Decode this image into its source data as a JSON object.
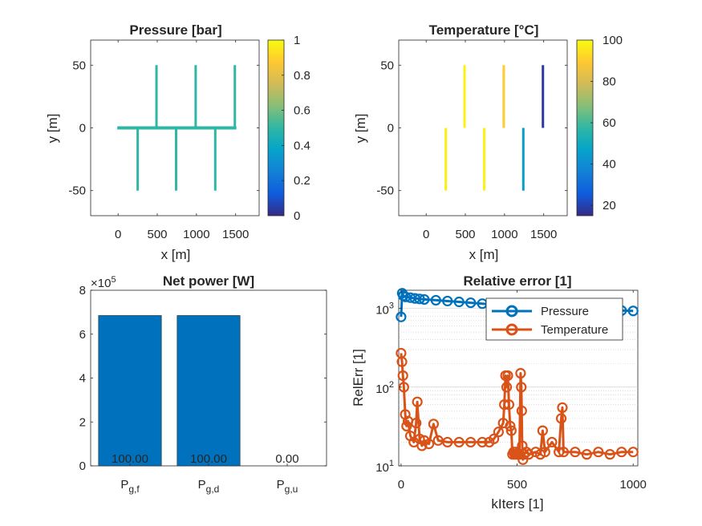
{
  "chart_data": [
    {
      "type": "heatmap",
      "title": "Pressure [bar]",
      "xlabel": "x [m]",
      "ylabel": "y [m]",
      "xlim": [
        -350,
        1800
      ],
      "ylim": [
        -70,
        70
      ],
      "xticks": [
        "0",
        "500",
        "1000",
        "1500"
      ],
      "yticks": [
        "-50",
        "0",
        "50"
      ],
      "colorbar": {
        "min": 0,
        "max": 1,
        "ticks": [
          "0",
          "0.2",
          "0.4",
          "0.6",
          "0.8",
          "1"
        ],
        "colormap": "parula"
      },
      "network": {
        "main": {
          "x": [
            -10,
            1510
          ],
          "y": 0,
          "value": 0.48,
          "inlet_value": 0.15
        },
        "branches": [
          {
            "x": 250,
            "y": [
              0,
              -50
            ],
            "value": 0.5
          },
          {
            "x": 490,
            "y": [
              0,
              50
            ],
            "value": 0.5
          },
          {
            "x": 740,
            "y": [
              0,
              -50
            ],
            "value": 0.5
          },
          {
            "x": 990,
            "y": [
              0,
              50
            ],
            "value": 0.5
          },
          {
            "x": 1240,
            "y": [
              0,
              -50
            ],
            "value": 0.5
          },
          {
            "x": 1490,
            "y": [
              0,
              50
            ],
            "value": 0.5
          }
        ]
      }
    },
    {
      "type": "heatmap",
      "title": "Temperature [°C]",
      "xlabel": "x [m]",
      "ylabel": "y [m]",
      "xlim": [
        -350,
        1800
      ],
      "ylim": [
        -70,
        70
      ],
      "xticks": [
        "0",
        "500",
        "1000",
        "1500"
      ],
      "yticks": [
        "-50",
        "0",
        "50"
      ],
      "colorbar": {
        "min": 15,
        "max": 100,
        "ticks": [
          "20",
          "40",
          "60",
          "80",
          "100"
        ],
        "colormap": "parula"
      },
      "network": {
        "main": {
          "x": [
            -10,
            1510
          ],
          "y": 0,
          "value": 97,
          "outlet_value": 18
        },
        "branches": [
          {
            "x": 250,
            "y": [
              0,
              -50
            ],
            "value": 98
          },
          {
            "x": 490,
            "y": [
              0,
              50
            ],
            "value": 98
          },
          {
            "x": 740,
            "y": [
              0,
              -50
            ],
            "value": 98
          },
          {
            "x": 990,
            "y": [
              0,
              50
            ],
            "value": 90
          },
          {
            "x": 1240,
            "y": [
              0,
              -50
            ],
            "value": 45
          },
          {
            "x": 1490,
            "y": [
              0,
              50
            ],
            "value": 18
          }
        ]
      }
    },
    {
      "type": "bar",
      "title": "Net power [W]",
      "exponent_label": "×10",
      "exponent_power": "5",
      "categories": [
        {
          "base": "P",
          "sub": "g,f"
        },
        {
          "base": "P",
          "sub": "g,d"
        },
        {
          "base": "P",
          "sub": "g,u"
        }
      ],
      "values": [
        6.85,
        6.85,
        0
      ],
      "value_labels": [
        "100.00",
        "100.00",
        "0.00"
      ],
      "ylim": [
        0,
        8
      ],
      "yticks": [
        "0",
        "2",
        "4",
        "6",
        "8"
      ],
      "color": "#0072BD"
    },
    {
      "type": "line",
      "title": "Relative error [1]",
      "xlabel": "kIters [1]",
      "ylabel": "RelErr [1]",
      "xlim": [
        -10,
        1020
      ],
      "ylim": [
        10,
        1700
      ],
      "yscale": "log",
      "xticks": [
        "0",
        "500",
        "1000"
      ],
      "grid": "y-minor",
      "legend_position": "top-right",
      "series": [
        {
          "name": "Pressure",
          "color": "#0072BD",
          "x": [
            0,
            5,
            10,
            20,
            40,
            60,
            80,
            100,
            150,
            200,
            250,
            300,
            350,
            400,
            450,
            500,
            550,
            600,
            650,
            700,
            750,
            800,
            850,
            900,
            950,
            1000
          ],
          "y": [
            780,
            1560,
            1450,
            1400,
            1370,
            1340,
            1320,
            1300,
            1270,
            1240,
            1210,
            1180,
            1150,
            1120,
            1100,
            1075,
            1055,
            1035,
            1020,
            1005,
            990,
            975,
            960,
            950,
            940,
            930
          ]
        },
        {
          "name": "Temperature",
          "color": "#D95319",
          "x": [
            0,
            4,
            8,
            12,
            18,
            24,
            30,
            40,
            55,
            65,
            70,
            80,
            90,
            100,
            120,
            140,
            160,
            200,
            250,
            300,
            350,
            380,
            400,
            420,
            440,
            445,
            450,
            455,
            460,
            465,
            470,
            475,
            480,
            485,
            490,
            495,
            500,
            510,
            515,
            518,
            520,
            522,
            525,
            530,
            540,
            550,
            580,
            600,
            610,
            620,
            650,
            680,
            690,
            695,
            700,
            750,
            800,
            850,
            900,
            950,
            1000
          ],
          "y": [
            270,
            210,
            140,
            100,
            45,
            32,
            37,
            24,
            20,
            35,
            65,
            22,
            18,
            21,
            19,
            34,
            21,
            20,
            20,
            20,
            20,
            20,
            22,
            27,
            35,
            60,
            140,
            100,
            140,
            60,
            32,
            28,
            14,
            15,
            14,
            15,
            14,
            14,
            150,
            100,
            50,
            18,
            12,
            14,
            15,
            14,
            15,
            14,
            28,
            15,
            20,
            15,
            40,
            55,
            15,
            15,
            14,
            15,
            14,
            15,
            15
          ]
        }
      ]
    }
  ]
}
